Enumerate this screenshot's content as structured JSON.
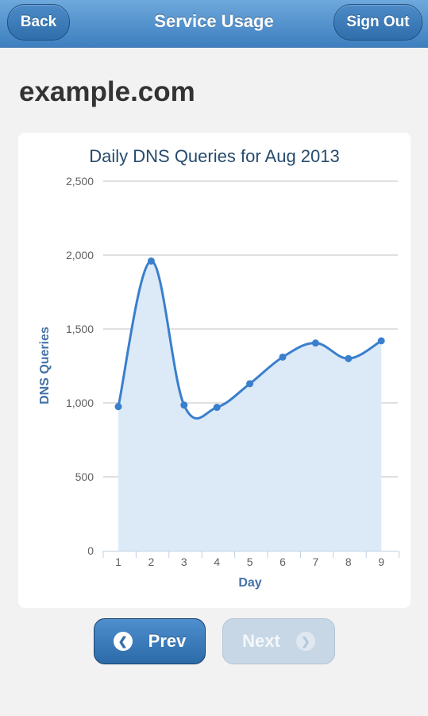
{
  "header": {
    "back_label": "Back",
    "title": "Service Usage",
    "signout_label": "Sign Out"
  },
  "domain_name": "example.com",
  "chart_data": {
    "type": "area",
    "title": "Daily DNS Queries for Aug 2013",
    "xlabel": "Day",
    "ylabel": "DNS Queries",
    "x": [
      1,
      2,
      3,
      4,
      5,
      6,
      7,
      8,
      9
    ],
    "y": [
      975,
      1960,
      985,
      970,
      1130,
      1310,
      1405,
      1300,
      1420
    ],
    "yticks": [
      0,
      500,
      1000,
      1500,
      2000,
      2500
    ],
    "ytick_labels": [
      "0",
      "500",
      "1,000",
      "1,500",
      "2,000",
      "2,500"
    ],
    "xtick_labels": [
      "1",
      "2",
      "3",
      "4",
      "5",
      "6",
      "7",
      "8",
      "9"
    ],
    "ylim": [
      0,
      2500
    ],
    "grid": true,
    "legend": false,
    "colors": {
      "line": "#3a7fcc",
      "fill": "#dce9f7",
      "grid": "#c0c0c0",
      "title": "#274b6d",
      "axis_label": "#4572a7"
    }
  },
  "footer": {
    "prev_label": "Prev",
    "next_label": "Next",
    "prev_icon": "chevron-left-icon",
    "next_icon": "chevron-right-icon"
  }
}
